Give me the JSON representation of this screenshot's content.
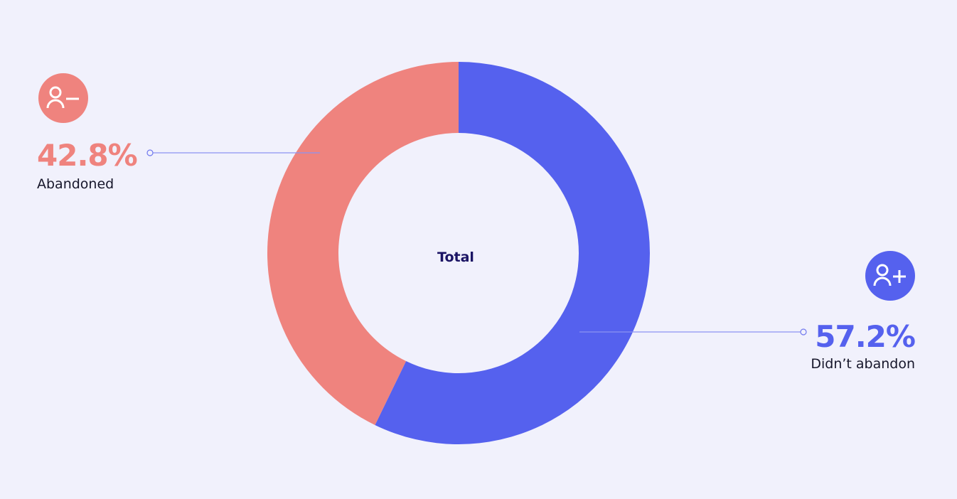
{
  "chart_data": {
    "type": "pie",
    "center_label": "Total",
    "categories": [
      "Didn’t abandon",
      "Abandoned"
    ],
    "values": [
      57.2,
      42.8
    ],
    "value_labels": [
      "57.2%",
      "42.8%"
    ],
    "colors": [
      "#5561ee",
      "#ef837e"
    ]
  }
}
